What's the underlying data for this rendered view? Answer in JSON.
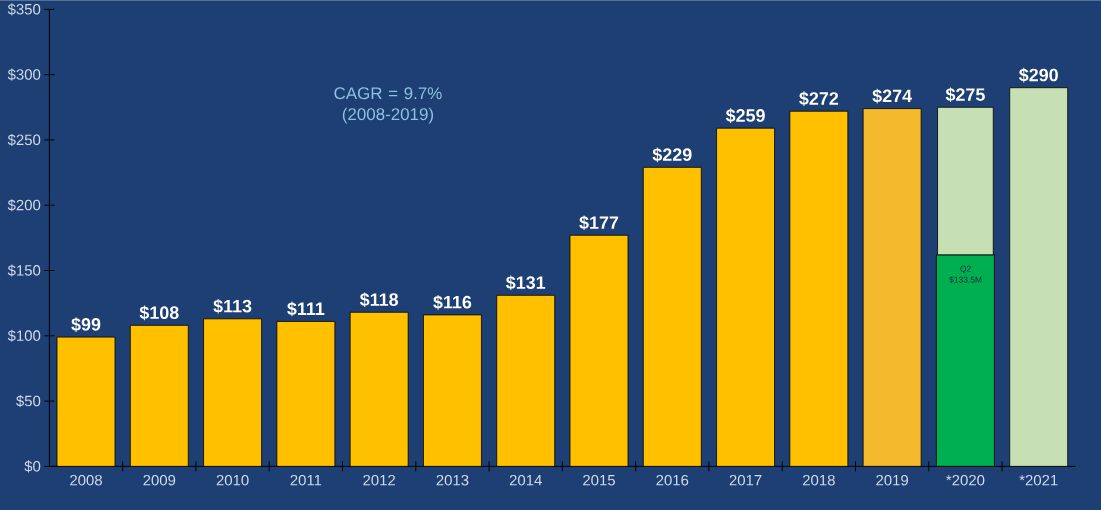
{
  "chart_data": {
    "type": "bar",
    "stacked": true,
    "categories": [
      "2008",
      "2009",
      "2010",
      "2011",
      "2012",
      "2013",
      "2014",
      "2015",
      "2016",
      "2017",
      "2018",
      "2019",
      "*2020",
      "*2021"
    ],
    "series": [
      {
        "colors": [
          "#ffc000",
          "#ffc000",
          "#ffc000",
          "#ffc000",
          "#ffc000",
          "#ffc000",
          "#ffc000",
          "#ffc000",
          "#ffc000",
          "#ffc000",
          "#ffc000",
          "#f4b92c",
          "#00b050",
          null
        ],
        "values": [
          99,
          108,
          113,
          111,
          118,
          116,
          131,
          177,
          229,
          259,
          272,
          274,
          162,
          null
        ]
      },
      {
        "color": "#c6e0b4",
        "values": [
          null,
          null,
          null,
          null,
          null,
          null,
          null,
          null,
          null,
          null,
          null,
          null,
          113,
          290
        ]
      }
    ],
    "totals": [
      "$99",
      "$108",
      "$113",
      "$111",
      "$118",
      "$116",
      "$131",
      "$177",
      "$229",
      "$259",
      "$272",
      "$274",
      "$275",
      "$290"
    ],
    "ylim": [
      0,
      350
    ],
    "yticks": [
      {
        "value": 0,
        "label": "$0"
      },
      {
        "value": 50,
        "label": "$50"
      },
      {
        "value": 100,
        "label": "$100"
      },
      {
        "value": 150,
        "label": "$150"
      },
      {
        "value": 200,
        "label": "$200"
      },
      {
        "value": 250,
        "label": "$250"
      },
      {
        "value": 300,
        "label": "$300"
      },
      {
        "value": 350,
        "label": "$350"
      }
    ],
    "annotations": [
      "CAGR = 9.7% (2008-2019)",
      "Q2 $133.5M"
    ],
    "grid": false
  }
}
